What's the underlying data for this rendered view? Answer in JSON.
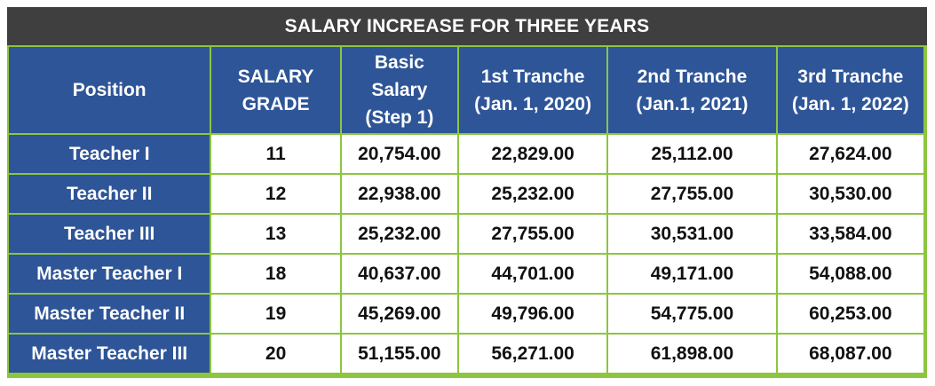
{
  "title": "SALARY INCREASE FOR THREE YEARS",
  "colors": {
    "frame": "#8cc63f",
    "title_bg": "#3f3f3f",
    "header_bg": "#2e5597",
    "cell_bg": "#ffffff"
  },
  "headers": {
    "position": "Position",
    "salary_grade": [
      "SALARY",
      "GRADE"
    ],
    "basic_salary": [
      "Basic",
      "Salary",
      "(Step 1)"
    ],
    "tranche1": [
      "1st Tranche",
      "(Jan. 1, 2020)"
    ],
    "tranche2": [
      "2nd Tranche",
      "(Jan.1, 2021)"
    ],
    "tranche3": [
      "3rd Tranche",
      "(Jan. 1, 2022)"
    ]
  },
  "rows": [
    {
      "position": "Teacher I",
      "grade": "11",
      "basic": "20,754.00",
      "t1": "22,829.00",
      "t2": "25,112.00",
      "t3": "27,624.00"
    },
    {
      "position": "Teacher II",
      "grade": "12",
      "basic": "22,938.00",
      "t1": "25,232.00",
      "t2": "27,755.00",
      "t3": "30,530.00"
    },
    {
      "position": "Teacher III",
      "grade": "13",
      "basic": "25,232.00",
      "t1": "27,755.00",
      "t2": "30,531.00",
      "t3": "33,584.00"
    },
    {
      "position": "Master Teacher I",
      "grade": "18",
      "basic": "40,637.00",
      "t1": "44,701.00",
      "t2": "49,171.00",
      "t3": "54,088.00"
    },
    {
      "position": "Master Teacher II",
      "grade": "19",
      "basic": "45,269.00",
      "t1": "49,796.00",
      "t2": "54,775.00",
      "t3": "60,253.00"
    },
    {
      "position": "Master Teacher III",
      "grade": "20",
      "basic": "51,155.00",
      "t1": "56,271.00",
      "t2": "61,898.00",
      "t3": "68,087.00"
    }
  ]
}
